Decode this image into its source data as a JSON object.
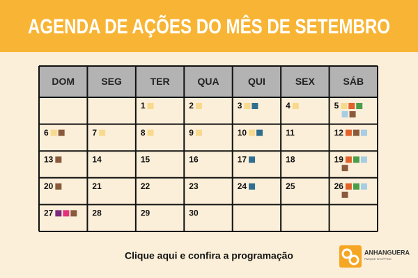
{
  "header": {
    "title": "AGENDA DE AÇÕES DO MÊS DE SETEMBRO"
  },
  "calendar": {
    "weekdays": [
      "DOM",
      "SEG",
      "TER",
      "QUA",
      "QUI",
      "SEX",
      "SÁB"
    ],
    "weeks": [
      [
        null,
        null,
        {
          "day": 1,
          "events": [
            "#f8d98d"
          ]
        },
        {
          "day": 2,
          "events": [
            "#f8d98d"
          ]
        },
        {
          "day": 3,
          "events": [
            "#f8d98d",
            "#2f6e8f"
          ]
        },
        {
          "day": 4,
          "events": [
            "#f8d98d"
          ]
        },
        {
          "day": 5,
          "events": [
            "#f8d98d",
            "#e2622c",
            "#4a9e4a",
            "#a6cde3",
            "#8a5a3c"
          ]
        }
      ],
      [
        {
          "day": 6,
          "events": [
            "#f8d98d",
            "#8a5a3c"
          ]
        },
        {
          "day": 7,
          "events": [
            "#f8d98d"
          ]
        },
        {
          "day": 8,
          "events": [
            "#f8d98d"
          ]
        },
        {
          "day": 9,
          "events": [
            "#f8d98d"
          ]
        },
        {
          "day": 10,
          "events": [
            "#f8d98d",
            "#2f6e8f"
          ]
        },
        {
          "day": 11,
          "events": []
        },
        {
          "day": 12,
          "events": [
            "#e2622c",
            "#8a5a3c",
            "#a6cde3"
          ]
        }
      ],
      [
        {
          "day": 13,
          "events": [
            "#8a5a3c"
          ]
        },
        {
          "day": 14,
          "events": []
        },
        {
          "day": 15,
          "events": []
        },
        {
          "day": 16,
          "events": []
        },
        {
          "day": 17,
          "events": [
            "#2f6e8f"
          ]
        },
        {
          "day": 18,
          "events": []
        },
        {
          "day": 19,
          "events": [
            "#e2622c",
            "#4a9e4a",
            "#a6cde3",
            "#8a5a3c"
          ]
        }
      ],
      [
        {
          "day": 20,
          "events": [
            "#8a5a3c"
          ]
        },
        {
          "day": 21,
          "events": []
        },
        {
          "day": 22,
          "events": []
        },
        {
          "day": 23,
          "events": []
        },
        {
          "day": 24,
          "events": [
            "#2f6e8f"
          ]
        },
        {
          "day": 25,
          "events": []
        },
        {
          "day": 26,
          "events": [
            "#e2622c",
            "#4a9e4a",
            "#a6cde3",
            "#8a5a3c"
          ]
        }
      ],
      [
        {
          "day": 27,
          "events": [
            "#7b2a7e",
            "#e0337a",
            "#8a5a3c"
          ]
        },
        {
          "day": 28,
          "events": []
        },
        {
          "day": 29,
          "events": []
        },
        {
          "day": 30,
          "events": []
        },
        null,
        null,
        null
      ]
    ]
  },
  "footer": {
    "cta": "Clique aqui e confira a programação"
  },
  "logo": {
    "name": "ANHANGUERA",
    "tagline": "PARQUE SHOPPING"
  }
}
